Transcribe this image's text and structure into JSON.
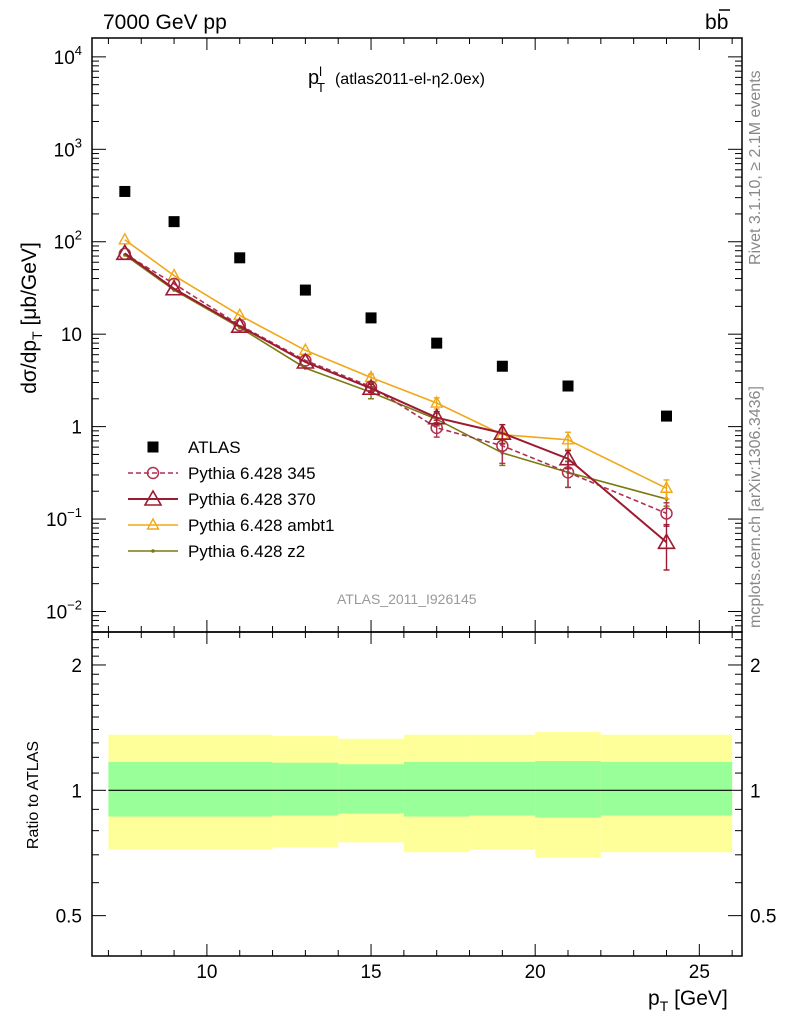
{
  "header": {
    "left": "7000 GeV pp",
    "right": "b",
    "right_bar": "b"
  },
  "side": {
    "rivet": "Rivet 3.1.10, ≥ 2.1M events",
    "mcplots": "mcplots.cern.ch [arXiv:1306.3436]"
  },
  "plot_title": {
    "main": "p",
    "sup": "l",
    "sub": "T",
    "rest": "(atlas2011-el-η2.0ex)"
  },
  "analysis_tag": "ATLAS_2011_I926145",
  "colors": {
    "atlas": "#000000",
    "p345": "#b03050",
    "p370": "#9b1b30",
    "ambt1": "#f0a818",
    "z2": "#7a7a10",
    "band_inner": "#99ff99",
    "band_outer": "#ffff99"
  },
  "chart_data": [
    {
      "type": "scatter",
      "title": "",
      "xlabel": "p_T [GeV]",
      "ylabel": "dσ/dp_T [μb/GeV]",
      "yscale": "log",
      "xlim": [
        6.5,
        26.3
      ],
      "ylim": [
        0.006,
        16000
      ],
      "y_ticks": [
        {
          "v": 0.01,
          "base": "10",
          "exp": "−2"
        },
        {
          "v": 0.1,
          "base": "10",
          "exp": "−1"
        },
        {
          "v": 1,
          "base": "1",
          "exp": ""
        },
        {
          "v": 10,
          "base": "10",
          "exp": ""
        },
        {
          "v": 100,
          "base": "10",
          "exp": "2"
        },
        {
          "v": 1000,
          "base": "10",
          "exp": "3"
        },
        {
          "v": 10000,
          "base": "10",
          "exp": "4"
        }
      ],
      "legend_position": "bottom-left",
      "x": [
        7.5,
        9,
        11,
        13,
        15,
        17,
        19,
        21,
        24
      ],
      "bins": [
        [
          7,
          8
        ],
        [
          8,
          10
        ],
        [
          10,
          12
        ],
        [
          12,
          14
        ],
        [
          14,
          16
        ],
        [
          16,
          18
        ],
        [
          18,
          20
        ],
        [
          20,
          22
        ],
        [
          22,
          26
        ]
      ],
      "series": [
        {
          "name": "ATLAS",
          "style": "square",
          "values": [
            350,
            165,
            67,
            30,
            15,
            8,
            4.5,
            2.75,
            1.3
          ]
        },
        {
          "name": "Pythia 6.428 345",
          "style": "circle-dashed",
          "values": [
            74,
            35,
            12.5,
            5.2,
            2.7,
            0.97,
            0.62,
            0.32,
            0.115
          ],
          "err": [
            0,
            0,
            0,
            0,
            0.25,
            0.2,
            0.22,
            0.1,
            0.035
          ]
        },
        {
          "name": "Pythia 6.428 370",
          "style": "triangle-big",
          "values": [
            75,
            31,
            12.2,
            5.0,
            2.6,
            1.25,
            0.85,
            0.45,
            0.056
          ],
          "err": [
            0,
            0,
            0,
            0,
            0.25,
            0.2,
            0.2,
            0.1,
            0.031
          ]
        },
        {
          "name": "Pythia 6.428 ambt1",
          "style": "triangle-small",
          "values": [
            105,
            43,
            16,
            6.7,
            3.4,
            1.8,
            0.82,
            0.72,
            0.215
          ],
          "err": [
            0,
            0,
            0,
            0,
            0.3,
            0.25,
            0.12,
            0.15,
            0.05
          ]
        },
        {
          "name": "Pythia 6.428 z2",
          "style": "dot",
          "values": [
            72,
            30,
            11.8,
            4.3,
            2.35,
            1.2,
            0.52,
            0.32,
            0.165
          ],
          "err": [
            0,
            0,
            0,
            0,
            0.35,
            0.18,
            0.14,
            0.1,
            0.03
          ]
        }
      ]
    },
    {
      "type": "area",
      "ylabel": "Ratio to ATLAS",
      "xlabel": "p_T [GeV]",
      "xlim": [
        6.5,
        26.3
      ],
      "ylim": [
        0.4,
        2.4
      ],
      "x_ticks": [
        10,
        15,
        20,
        25
      ],
      "y_ticks": [
        0.5,
        1,
        2
      ],
      "bands": [
        {
          "x0": 7,
          "x1": 12,
          "inner": [
            0.865,
            1.17
          ],
          "outer": [
            0.72,
            1.36
          ]
        },
        {
          "x0": 12,
          "x1": 14,
          "inner": [
            0.87,
            1.165
          ],
          "outer": [
            0.73,
            1.35
          ]
        },
        {
          "x0": 14,
          "x1": 16,
          "inner": [
            0.88,
            1.155
          ],
          "outer": [
            0.75,
            1.33
          ]
        },
        {
          "x0": 16,
          "x1": 18,
          "inner": [
            0.865,
            1.17
          ],
          "outer": [
            0.71,
            1.36
          ]
        },
        {
          "x0": 18,
          "x1": 20,
          "inner": [
            0.87,
            1.17
          ],
          "outer": [
            0.72,
            1.36
          ]
        },
        {
          "x0": 20,
          "x1": 22,
          "inner": [
            0.86,
            1.175
          ],
          "outer": [
            0.69,
            1.38
          ]
        },
        {
          "x0": 22,
          "x1": 26,
          "inner": [
            0.87,
            1.17
          ],
          "outer": [
            0.71,
            1.36
          ]
        }
      ]
    }
  ]
}
